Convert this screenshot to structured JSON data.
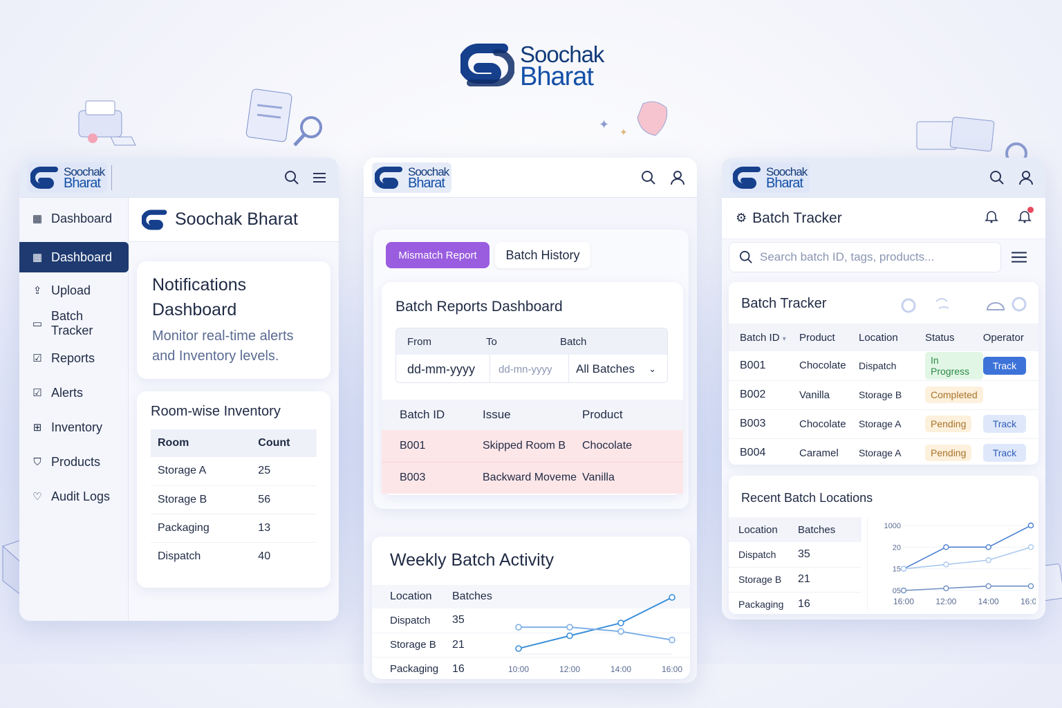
{
  "brand": {
    "line1": "Soochak",
    "line2": "Bharat",
    "full": "Soochak Bharat"
  },
  "colors": {
    "navy": "#1e3a70",
    "brand_blue": "#1450a8",
    "accent_purple": "#9a5de0",
    "track_blue": "#3d73d8",
    "mismatch_row": "#fde6e8"
  },
  "left": {
    "nav": [
      {
        "icon": "grid-icon",
        "label": "Dashboard"
      },
      {
        "icon": "grid-icon",
        "label": "Dashboard"
      },
      {
        "icon": "upload-icon",
        "label": "Upload"
      },
      {
        "icon": "batch-icon",
        "label": "Batch Tracker"
      },
      {
        "icon": "reports-icon",
        "label": "Reports"
      },
      {
        "icon": "alerts-icon",
        "label": "Alerts"
      },
      {
        "icon": "inventory-icon",
        "label": "Inventory"
      },
      {
        "icon": "products-icon",
        "label": "Products"
      },
      {
        "icon": "audit-icon",
        "label": "Audit Logs"
      }
    ],
    "header_title": "Soochak Bharat",
    "notifications": {
      "title": "Notifications Dashboard",
      "subtitle": "Monitor real-time alerts and Inventory levels."
    },
    "inventory": {
      "title": "Room-wise Inventory",
      "columns": [
        "Room",
        "Count"
      ],
      "rows": [
        [
          "Storage A",
          "25"
        ],
        [
          "Storage B",
          "56"
        ],
        [
          "Packaging",
          "13"
        ],
        [
          "Dispatch",
          "40"
        ]
      ]
    }
  },
  "middle": {
    "tabs": {
      "mismatch": "Mismatch Report",
      "history": "Batch History"
    },
    "reports": {
      "title": "Batch Reports Dashboard",
      "filters": {
        "from_label": "From",
        "to_label": "To",
        "batch_label": "Batch",
        "from_value": "dd-mm-yyyy",
        "to_value": "dd-mn-yyyy",
        "batch_value": "All Batches"
      },
      "columns": [
        "Batch ID",
        "Issue",
        "Product"
      ],
      "rows": [
        [
          "B001",
          "Skipped Room B",
          "Chocolate"
        ],
        [
          "B003",
          "Backward Moveme",
          "Vanilla"
        ]
      ]
    },
    "weekly": {
      "title": "Weekly Batch Activity",
      "columns": [
        "Location",
        "Batches"
      ],
      "rows": [
        [
          "Dispatch",
          "35"
        ],
        [
          "Storage B",
          "21"
        ],
        [
          "Packaging",
          "16"
        ]
      ]
    }
  },
  "right": {
    "header_title": "Batch Tracker",
    "search_placeholder": "Search batch ID, tags, products...",
    "tracker": {
      "title": "Batch Tracker",
      "columns": [
        "Batch ID",
        "Product",
        "Location",
        "Status",
        "Operator"
      ],
      "rows": [
        {
          "id": "B001",
          "product": "Chocolate",
          "location": "Dispatch",
          "status": "In Progress",
          "status_kind": "prog",
          "action": "Track",
          "action_kind": "primary"
        },
        {
          "id": "B002",
          "product": "Vanilla",
          "location": "Storage B",
          "status": "Completed",
          "status_kind": "comp",
          "action": "",
          "action_kind": "none"
        },
        {
          "id": "B003",
          "product": "Chocolate",
          "location": "Storage A",
          "status": "Pending",
          "status_kind": "pend",
          "action": "Track",
          "action_kind": "secondary"
        },
        {
          "id": "B004",
          "product": "Caramel",
          "location": "Storage A",
          "status": "Pending",
          "status_kind": "pend",
          "action": "Track",
          "action_kind": "secondary"
        }
      ]
    },
    "recent": {
      "title": "Recent Batch Locations",
      "columns": [
        "Location",
        "Batches"
      ],
      "rows": [
        [
          "Dispatch",
          "35"
        ],
        [
          "Storage B",
          "21"
        ],
        [
          "Packaging",
          "16"
        ]
      ]
    }
  },
  "chart_data": [
    {
      "type": "line",
      "x": [
        "10:00",
        "12:00",
        "14:00",
        "16:00"
      ],
      "series": [
        {
          "values": [
            0,
            3,
            6,
            12
          ]
        },
        {
          "values": [
            5,
            5,
            4,
            2
          ]
        }
      ]
    },
    {
      "type": "line",
      "x": [
        "16:00",
        "12:00",
        "14:00",
        "16:00"
      ],
      "y_ticks": [
        "1000",
        "20",
        "15",
        "05"
      ],
      "series": [
        {
          "values": [
            15,
            20,
            21,
            1000
          ]
        },
        {
          "values": [
            15,
            16,
            17,
            20
          ]
        },
        {
          "values": [
            5,
            6,
            7,
            7
          ]
        }
      ]
    }
  ]
}
